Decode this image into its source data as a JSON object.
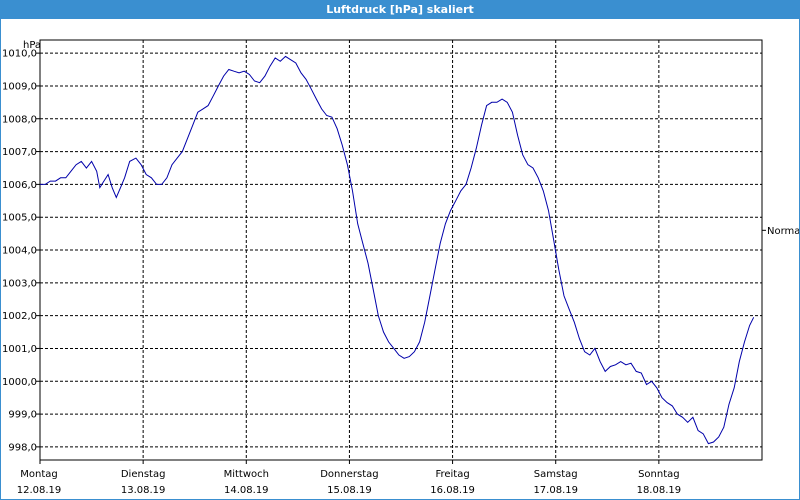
{
  "window": {
    "title": "Luftdruck [hPa] skaliert"
  },
  "colors": {
    "titlebar": "#3a8fd0",
    "line": "#0000aa",
    "grid": "#000000"
  },
  "chart_data": {
    "type": "line",
    "title": "Luftdruck [hPa] skaliert",
    "ylabel": "hPa",
    "xlabel": "",
    "ylim": [
      997.6,
      1010.4
    ],
    "xlim": [
      0,
      7
    ],
    "grid": true,
    "grid_style": "dashed",
    "y_ticks": [
      "998,0",
      "999,0",
      "1000,0",
      "1001,0",
      "1002,0",
      "1003,0",
      "1004,0",
      "1005,0",
      "1006,0",
      "1007,0",
      "1008,0",
      "1009,0",
      "1010,0"
    ],
    "y_tick_values": [
      998,
      999,
      1000,
      1001,
      1002,
      1003,
      1004,
      1005,
      1006,
      1007,
      1008,
      1009,
      1010
    ],
    "x_ticks": [
      {
        "day": "Montag",
        "date": "12.08.19"
      },
      {
        "day": "Dienstag",
        "date": "13.08.19"
      },
      {
        "day": "Mittwoch",
        "date": "14.08.19"
      },
      {
        "day": "Donnerstag",
        "date": "15.08.19"
      },
      {
        "day": "Freitag",
        "date": "16.08.19"
      },
      {
        "day": "Samstag",
        "date": "17.08.19"
      },
      {
        "day": "Sonntag",
        "date": "18.08.19"
      }
    ],
    "reference_label": "Normal",
    "reference_value": 1004.6,
    "series": [
      {
        "points": [
          [
            0.0,
            1006.0
          ],
          [
            0.05,
            1006.0
          ],
          [
            0.1,
            1006.1
          ],
          [
            0.15,
            1006.1
          ],
          [
            0.2,
            1006.2
          ],
          [
            0.25,
            1006.2
          ],
          [
            0.3,
            1006.4
          ],
          [
            0.35,
            1006.6
          ],
          [
            0.4,
            1006.7
          ],
          [
            0.45,
            1006.5
          ],
          [
            0.5,
            1006.7
          ],
          [
            0.55,
            1006.4
          ],
          [
            0.58,
            1005.9
          ],
          [
            0.62,
            1006.1
          ],
          [
            0.66,
            1006.3
          ],
          [
            0.7,
            1005.9
          ],
          [
            0.74,
            1005.6
          ],
          [
            0.78,
            1005.9
          ],
          [
            0.82,
            1006.2
          ],
          [
            0.87,
            1006.7
          ],
          [
            0.93,
            1006.8
          ],
          [
            0.98,
            1006.6
          ],
          [
            1.03,
            1006.3
          ],
          [
            1.08,
            1006.2
          ],
          [
            1.13,
            1006.0
          ],
          [
            1.18,
            1006.0
          ],
          [
            1.23,
            1006.2
          ],
          [
            1.28,
            1006.6
          ],
          [
            1.33,
            1006.8
          ],
          [
            1.38,
            1007.0
          ],
          [
            1.43,
            1007.4
          ],
          [
            1.48,
            1007.8
          ],
          [
            1.53,
            1008.2
          ],
          [
            1.58,
            1008.3
          ],
          [
            1.63,
            1008.4
          ],
          [
            1.68,
            1008.7
          ],
          [
            1.73,
            1009.0
          ],
          [
            1.78,
            1009.3
          ],
          [
            1.83,
            1009.5
          ],
          [
            1.88,
            1009.45
          ],
          [
            1.93,
            1009.4
          ],
          [
            1.98,
            1009.45
          ],
          [
            2.03,
            1009.35
          ],
          [
            2.08,
            1009.15
          ],
          [
            2.13,
            1009.1
          ],
          [
            2.18,
            1009.3
          ],
          [
            2.23,
            1009.6
          ],
          [
            2.28,
            1009.85
          ],
          [
            2.33,
            1009.75
          ],
          [
            2.38,
            1009.9
          ],
          [
            2.43,
            1009.8
          ],
          [
            2.48,
            1009.7
          ],
          [
            2.53,
            1009.4
          ],
          [
            2.58,
            1009.2
          ],
          [
            2.63,
            1008.9
          ],
          [
            2.68,
            1008.6
          ],
          [
            2.73,
            1008.3
          ],
          [
            2.78,
            1008.1
          ],
          [
            2.83,
            1008.05
          ],
          [
            2.88,
            1007.7
          ],
          [
            2.93,
            1007.2
          ],
          [
            2.98,
            1006.6
          ],
          [
            3.03,
            1005.8
          ],
          [
            3.08,
            1004.8
          ],
          [
            3.13,
            1004.2
          ],
          [
            3.18,
            1003.6
          ],
          [
            3.23,
            1002.8
          ],
          [
            3.28,
            1002.0
          ],
          [
            3.33,
            1001.5
          ],
          [
            3.38,
            1001.2
          ],
          [
            3.43,
            1001.0
          ],
          [
            3.48,
            1000.8
          ],
          [
            3.53,
            1000.7
          ],
          [
            3.58,
            1000.75
          ],
          [
            3.63,
            1000.9
          ],
          [
            3.68,
            1001.2
          ],
          [
            3.73,
            1001.8
          ],
          [
            3.78,
            1002.6
          ],
          [
            3.83,
            1003.4
          ],
          [
            3.88,
            1004.2
          ],
          [
            3.93,
            1004.8
          ],
          [
            3.98,
            1005.2
          ],
          [
            4.03,
            1005.5
          ],
          [
            4.08,
            1005.8
          ],
          [
            4.13,
            1006.0
          ],
          [
            4.18,
            1006.5
          ],
          [
            4.23,
            1007.1
          ],
          [
            4.28,
            1007.8
          ],
          [
            4.33,
            1008.4
          ],
          [
            4.38,
            1008.5
          ],
          [
            4.43,
            1008.5
          ],
          [
            4.48,
            1008.6
          ],
          [
            4.53,
            1008.5
          ],
          [
            4.58,
            1008.2
          ],
          [
            4.63,
            1007.5
          ],
          [
            4.68,
            1006.9
          ],
          [
            4.73,
            1006.6
          ],
          [
            4.78,
            1006.5
          ],
          [
            4.83,
            1006.2
          ],
          [
            4.88,
            1005.8
          ],
          [
            4.93,
            1005.2
          ],
          [
            4.98,
            1004.3
          ],
          [
            5.03,
            1003.4
          ],
          [
            5.08,
            1002.6
          ],
          [
            5.13,
            1002.2
          ],
          [
            5.18,
            1001.8
          ],
          [
            5.23,
            1001.3
          ],
          [
            5.28,
            1000.9
          ],
          [
            5.33,
            1000.8
          ],
          [
            5.38,
            1001.0
          ],
          [
            5.43,
            1000.6
          ],
          [
            5.48,
            1000.3
          ],
          [
            5.53,
            1000.45
          ],
          [
            5.58,
            1000.5
          ],
          [
            5.63,
            1000.6
          ],
          [
            5.68,
            1000.5
          ],
          [
            5.73,
            1000.55
          ],
          [
            5.78,
            1000.3
          ],
          [
            5.83,
            1000.25
          ],
          [
            5.88,
            999.9
          ],
          [
            5.93,
            1000.0
          ],
          [
            5.98,
            999.8
          ],
          [
            6.03,
            999.5
          ],
          [
            6.08,
            999.35
          ],
          [
            6.13,
            999.25
          ],
          [
            6.18,
            999.0
          ],
          [
            6.23,
            998.9
          ],
          [
            6.28,
            998.75
          ],
          [
            6.33,
            998.9
          ],
          [
            6.38,
            998.5
          ],
          [
            6.43,
            998.4
          ],
          [
            6.48,
            998.1
          ],
          [
            6.53,
            998.15
          ],
          [
            6.58,
            998.3
          ],
          [
            6.63,
            998.6
          ],
          [
            6.68,
            999.3
          ],
          [
            6.73,
            999.8
          ],
          [
            6.78,
            1000.6
          ],
          [
            6.83,
            1001.2
          ],
          [
            6.88,
            1001.7
          ],
          [
            6.92,
            1001.95
          ]
        ]
      }
    ]
  }
}
